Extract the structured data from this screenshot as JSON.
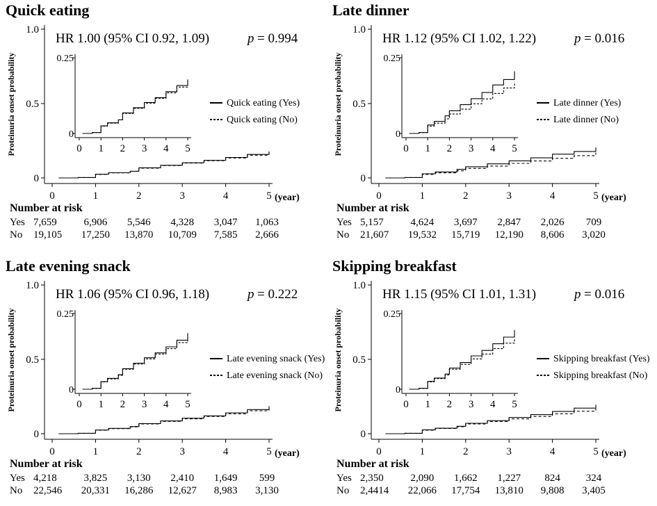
{
  "chart_data": [
    {
      "type": "line",
      "title": "Quick eating",
      "ylabel": "Proteinuria onset probability",
      "x_unit": "(year)",
      "ylim": [
        0,
        1.0
      ],
      "yticks": [
        "0",
        "0.5",
        "1.0"
      ],
      "xlim": [
        0,
        5
      ],
      "xticks": [
        "0",
        "1",
        "2",
        "3",
        "4",
        "5"
      ],
      "stat_text": "HR 1.00 (95% CI 0.92, 1.09)",
      "p_label": "p",
      "p_value": "= 0.994",
      "inset": {
        "ylim": [
          0,
          0.25
        ],
        "yticks": [
          "0",
          "0.25"
        ],
        "xticks": [
          "0",
          "1",
          "2",
          "3",
          "4",
          "5"
        ]
      },
      "series": [
        {
          "name": "Quick eating (Yes)",
          "style": "solid",
          "x": [
            0.15,
            0.6,
            1.0,
            1.3,
            1.8,
            2.0,
            2.5,
            3.0,
            3.5,
            4.0,
            4.5,
            5.0
          ],
          "y": [
            0.0,
            0.003,
            0.025,
            0.035,
            0.045,
            0.068,
            0.085,
            0.102,
            0.118,
            0.138,
            0.158,
            0.178
          ]
        },
        {
          "name": "Quick eating (No)",
          "style": "dashed",
          "x": [
            0.15,
            0.6,
            1.0,
            1.3,
            1.8,
            2.0,
            2.5,
            3.0,
            3.5,
            4.0,
            4.5,
            5.0
          ],
          "y": [
            0.0,
            0.003,
            0.024,
            0.034,
            0.045,
            0.066,
            0.083,
            0.1,
            0.116,
            0.134,
            0.153,
            0.172
          ]
        }
      ],
      "risk": {
        "header": "Number at risk",
        "rows": [
          {
            "label": "Yes",
            "values": [
              "7,659",
              "6,906",
              "5,546",
              "4,328",
              "3,047",
              "1,063"
            ]
          },
          {
            "label": "No",
            "values": [
              "19,105",
              "17,250",
              "13,870",
              "10,709",
              "7,585",
              "2,666"
            ]
          }
        ]
      }
    },
    {
      "type": "line",
      "title": "Late dinner",
      "ylabel": "Proteinuria onset probability",
      "x_unit": "(year)",
      "ylim": [
        0,
        1.0
      ],
      "yticks": [
        "0",
        "0.5",
        "1.0"
      ],
      "xlim": [
        0,
        5
      ],
      "xticks": [
        "0",
        "1",
        "2",
        "3",
        "4",
        "5"
      ],
      "stat_text": "HR 1.12 (95% CI 1.02, 1.22)",
      "p_label": "p",
      "p_value": "= 0.016",
      "inset": {
        "ylim": [
          0,
          0.25
        ],
        "yticks": [
          "0",
          "0.25"
        ],
        "xticks": [
          "0",
          "1",
          "2",
          "3",
          "4",
          "5"
        ]
      },
      "series": [
        {
          "name": "Late dinner (Yes)",
          "style": "solid",
          "x": [
            0.15,
            0.6,
            1.0,
            1.3,
            1.8,
            2.0,
            2.5,
            3.0,
            3.5,
            4.0,
            4.5,
            5.0
          ],
          "y": [
            0.0,
            0.003,
            0.028,
            0.04,
            0.058,
            0.075,
            0.095,
            0.115,
            0.135,
            0.16,
            0.178,
            0.205
          ]
        },
        {
          "name": "Late dinner (No)",
          "style": "dashed",
          "x": [
            0.15,
            0.6,
            1.0,
            1.3,
            1.8,
            2.0,
            2.5,
            3.0,
            3.5,
            4.0,
            4.5,
            5.0
          ],
          "y": [
            0.0,
            0.003,
            0.024,
            0.034,
            0.048,
            0.064,
            0.08,
            0.098,
            0.114,
            0.132,
            0.15,
            0.17
          ]
        }
      ],
      "risk": {
        "header": "Number at risk",
        "rows": [
          {
            "label": "Yes",
            "values": [
              "5,157",
              "4,624",
              "3,697",
              "2,847",
              "2,026",
              "709"
            ]
          },
          {
            "label": "No",
            "values": [
              "21,607",
              "19,532",
              "15,719",
              "12,190",
              "8,606",
              "3,020"
            ]
          }
        ]
      }
    },
    {
      "type": "line",
      "title": "Late evening snack",
      "ylabel": "Proteinuria onset probability",
      "x_unit": "(year)",
      "ylim": [
        0,
        1.0
      ],
      "yticks": [
        "0",
        "0.5",
        "1.0"
      ],
      "xlim": [
        0,
        5
      ],
      "xticks": [
        "0",
        "1",
        "2",
        "3",
        "4",
        "5"
      ],
      "stat_text": "HR 1.06 (95% CI 0.96, 1.18)",
      "p_label": "p",
      "p_value": "= 0.222",
      "inset": {
        "ylim": [
          0,
          0.25
        ],
        "yticks": [
          "0",
          "0.25"
        ],
        "xticks": [
          "0",
          "1",
          "2",
          "3",
          "4",
          "5"
        ]
      },
      "series": [
        {
          "name": "Late evening snack (Yes)",
          "style": "solid",
          "x": [
            0.15,
            0.6,
            1.0,
            1.3,
            1.8,
            2.0,
            2.5,
            3.0,
            3.5,
            4.0,
            4.5,
            5.0
          ],
          "y": [
            0.0,
            0.003,
            0.025,
            0.036,
            0.048,
            0.068,
            0.086,
            0.104,
            0.12,
            0.14,
            0.162,
            0.185
          ]
        },
        {
          "name": "Late evening snack (No)",
          "style": "dashed",
          "x": [
            0.15,
            0.6,
            1.0,
            1.3,
            1.8,
            2.0,
            2.5,
            3.0,
            3.5,
            4.0,
            4.5,
            5.0
          ],
          "y": [
            0.0,
            0.003,
            0.024,
            0.034,
            0.046,
            0.066,
            0.083,
            0.1,
            0.116,
            0.134,
            0.154,
            0.172
          ]
        }
      ],
      "risk": {
        "header": "Number at risk",
        "rows": [
          {
            "label": "Yes",
            "values": [
              "4,218",
              "3,825",
              "3,130",
              "2,410",
              "1,649",
              "599"
            ]
          },
          {
            "label": "No",
            "values": [
              "22,546",
              "20,331",
              "16,286",
              "12,627",
              "8,983",
              "3,130"
            ]
          }
        ]
      }
    },
    {
      "type": "line",
      "title": "Skipping breakfast",
      "ylabel": "Proteinuria onset probability",
      "x_unit": "(year)",
      "ylim": [
        0,
        1.0
      ],
      "yticks": [
        "0",
        "0.5",
        "1.0"
      ],
      "xlim": [
        0,
        5
      ],
      "xticks": [
        "0",
        "1",
        "2",
        "3",
        "4",
        "5"
      ],
      "stat_text": "HR 1.15 (95% CI 1.01, 1.31)",
      "p_label": "p",
      "p_value": "= 0.016",
      "inset": {
        "ylim": [
          0,
          0.25
        ],
        "yticks": [
          "0",
          "0.25"
        ],
        "xticks": [
          "0",
          "1",
          "2",
          "3",
          "4",
          "5"
        ]
      },
      "series": [
        {
          "name": "Skipping breakfast (Yes)",
          "style": "solid",
          "x": [
            0.15,
            0.6,
            1.0,
            1.3,
            1.8,
            2.0,
            2.5,
            3.0,
            3.5,
            4.0,
            4.5,
            5.0
          ],
          "y": [
            0.0,
            0.003,
            0.026,
            0.037,
            0.05,
            0.07,
            0.088,
            0.11,
            0.128,
            0.15,
            0.172,
            0.195
          ]
        },
        {
          "name": "Skipping breakfast (No)",
          "style": "dashed",
          "x": [
            0.15,
            0.6,
            1.0,
            1.3,
            1.8,
            2.0,
            2.5,
            3.0,
            3.5,
            4.0,
            4.5,
            5.0
          ],
          "y": [
            0.0,
            0.003,
            0.024,
            0.035,
            0.047,
            0.066,
            0.082,
            0.1,
            0.116,
            0.134,
            0.152,
            0.17
          ]
        }
      ],
      "risk": {
        "header": "Number at risk",
        "rows": [
          {
            "label": "Yes",
            "values": [
              "2,350",
              "2,090",
              "1,662",
              "1,227",
              "824",
              "324"
            ]
          },
          {
            "label": "No",
            "values": [
              "2,4414",
              "22,066",
              "17,754",
              "13,810",
              "9,808",
              "3,405"
            ]
          }
        ]
      }
    }
  ]
}
